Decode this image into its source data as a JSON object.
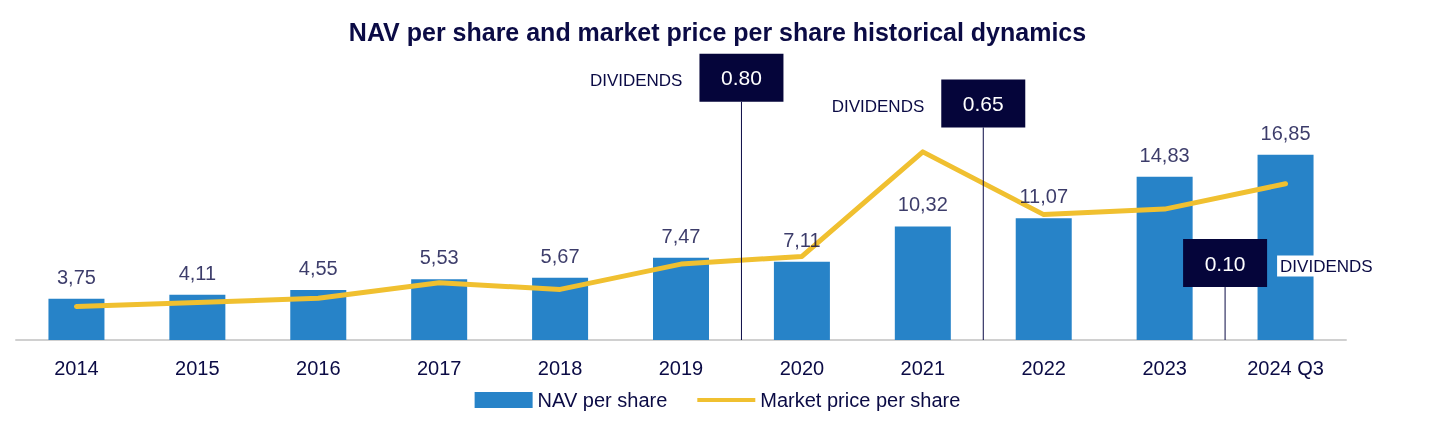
{
  "chart_data": {
    "type": "bar",
    "title": "NAV per share and market price per share historical dynamics",
    "categories": [
      "2014",
      "2015",
      "2016",
      "2017",
      "2018",
      "2019",
      "2020",
      "2021",
      "2022",
      "2023",
      "2024 Q3"
    ],
    "series": [
      {
        "name": "NAV per share",
        "color": "#2783c8",
        "values": [
          3.75,
          4.11,
          4.55,
          5.53,
          5.67,
          7.47,
          7.11,
          10.32,
          11.07,
          14.83,
          16.85
        ],
        "value_labels": [
          "3,75",
          "4,11",
          "4,55",
          "5,53",
          "5,67",
          "7,47",
          "7,11",
          "10,32",
          "11,07",
          "14,83",
          "16,85"
        ]
      },
      {
        "name": "Market price per share",
        "type": "line",
        "color": "#f0c030",
        "values": [
          3.05,
          3.4,
          3.8,
          5.2,
          4.6,
          6.9,
          7.6,
          17.1,
          11.4,
          11.9,
          14.2
        ]
      }
    ],
    "annotations": [
      "0.80",
      "DIVIDENDS",
      "0.65",
      "DIVIDENDS",
      "0.10",
      "DIVIDENDS"
    ],
    "tick_labels": "x",
    "legend": "bottom",
    "marker": "none",
    "line_style": "solid",
    "grid": false
  }
}
